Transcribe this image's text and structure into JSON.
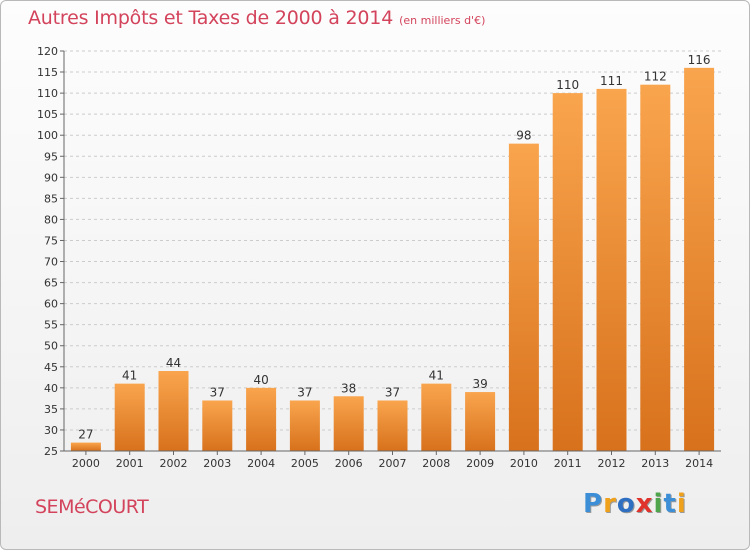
{
  "title": "Autres Impôts et Taxes de 2000 à 2014",
  "subtitle": "(en milliers d'€)",
  "commune": "SEMéCOURT",
  "brand": {
    "letters": [
      "P",
      "r",
      "o",
      "x",
      "i",
      "t",
      "i"
    ],
    "colors": [
      "#3c8fd6",
      "#f0a11c",
      "#2e6fc2",
      "#e0332c",
      "#4ea54c",
      "#3c8fd6",
      "#f0a11c"
    ]
  },
  "colors": {
    "bar_top": "#f9a54e",
    "bar_bottom": "#d8711c",
    "title": "#d3445c",
    "grid": "#cccccc"
  },
  "chart_data": {
    "type": "bar",
    "categories": [
      "2000",
      "2001",
      "2002",
      "2003",
      "2004",
      "2005",
      "2006",
      "2007",
      "2008",
      "2009",
      "2010",
      "2011",
      "2012",
      "2013",
      "2014"
    ],
    "values": [
      27,
      41,
      44,
      37,
      40,
      37,
      38,
      37,
      41,
      39,
      98,
      110,
      111,
      112,
      116
    ],
    "data_labels": [
      "27",
      "41",
      "44",
      "37",
      "40",
      "37",
      "38",
      "37",
      "41",
      "39",
      "98",
      "110",
      "111",
      "112",
      "116"
    ],
    "ylim": [
      25,
      120
    ],
    "yticks": [
      "25",
      "30",
      "35",
      "40",
      "45",
      "50",
      "55",
      "60",
      "65",
      "70",
      "75",
      "80",
      "85",
      "90",
      "95",
      "100",
      "105",
      "110",
      "115",
      "120"
    ],
    "grid": true,
    "title": "Autres Impôts et Taxes de 2000 à 2014",
    "xlabel": "",
    "ylabel": ""
  }
}
